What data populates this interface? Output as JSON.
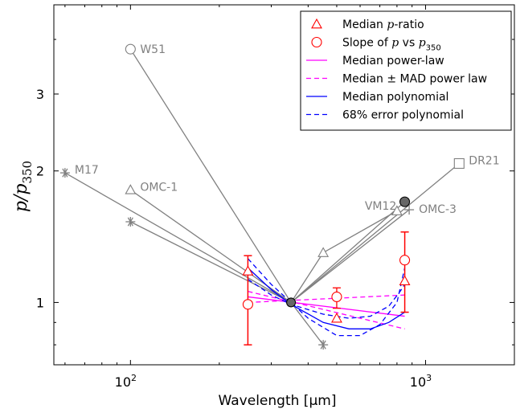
{
  "chart_data": {
    "type": "scatter",
    "xscale": "log",
    "yscale": "log",
    "xlim": [
      55,
      2000
    ],
    "ylim": [
      0.72,
      4.8
    ],
    "xlabel": "Wavelength [",
    "xlabel_unit": "μm]",
    "ylabel_p": "p",
    "ylabel_over": "/p",
    "ylabel_sub": "350",
    "x_ticks": [
      {
        "value": 100,
        "base": "10",
        "exp": "2"
      },
      {
        "value": 1000,
        "base": "10",
        "exp": "3"
      }
    ],
    "y_ticks": [
      {
        "value": 1,
        "label": "1"
      },
      {
        "value": 2,
        "label": "2"
      },
      {
        "value": 3,
        "label": "3"
      }
    ],
    "sources": [
      {
        "name": "W51",
        "marker": "open-circle",
        "points": [
          [
            100,
            3.8
          ],
          [
            350,
            1.0
          ]
        ]
      },
      {
        "name": "M17",
        "marker": "asterisk",
        "points": [
          [
            60,
            1.98
          ],
          [
            350,
            1.0
          ],
          [
            450,
            0.8
          ]
        ]
      },
      {
        "name": "OMC-1",
        "marker": "open-triangle",
        "points": [
          [
            100,
            1.81
          ],
          [
            350,
            1.0
          ]
        ]
      },
      {
        "name": "",
        "marker": "asterisk",
        "points": [
          [
            100,
            1.53
          ],
          [
            350,
            1.0
          ]
        ]
      },
      {
        "name": "DR21",
        "marker": "open-square",
        "points": [
          [
            350,
            1.0
          ],
          [
            1300,
            2.08
          ]
        ]
      },
      {
        "name": "VM12",
        "marker": "filled-circle",
        "points": [
          [
            350,
            1.0
          ],
          [
            850,
            1.7
          ]
        ]
      },
      {
        "name": "OMC-3",
        "marker": "plus",
        "points": [
          [
            350,
            1.0
          ],
          [
            880,
            1.63
          ]
        ]
      },
      {
        "name": "",
        "marker": "open-triangle",
        "points": [
          [
            350,
            1.0
          ],
          [
            450,
            1.3
          ],
          [
            800,
            1.62
          ]
        ]
      }
    ],
    "median_p_ratio": [
      {
        "x": 250,
        "y": 1.18,
        "lo": 0.8,
        "hi": 1.28
      },
      {
        "x": 350,
        "y": 1.0
      },
      {
        "x": 500,
        "y": 0.92
      },
      {
        "x": 850,
        "y": 1.12,
        "lo": 0.95,
        "hi": 1.45
      }
    ],
    "slope_p_vs_p350": [
      {
        "x": 250,
        "y": 0.99,
        "lo": 0.8,
        "hi": 1.28
      },
      {
        "x": 350,
        "y": 1.0
      },
      {
        "x": 500,
        "y": 1.03,
        "lo": 0.97,
        "hi": 1.08
      },
      {
        "x": 850,
        "y": 1.25,
        "lo": 0.95,
        "hi": 1.45
      }
    ],
    "median_power_law": {
      "x": [
        250,
        850
      ],
      "y": [
        1.03,
        0.93
      ]
    },
    "mad_power_law": [
      {
        "x": [
          250,
          850
        ],
        "y": [
          1.06,
          0.87
        ]
      },
      {
        "x": [
          250,
          850
        ],
        "y": [
          1.0,
          1.04
        ]
      }
    ],
    "median_polynomial": {
      "x": [
        250,
        300,
        350,
        450,
        550,
        650,
        750,
        850
      ],
      "y": [
        1.2,
        1.07,
        0.99,
        0.9,
        0.87,
        0.87,
        0.9,
        0.95
      ]
    },
    "error_polynomial": [
      {
        "x": [
          250,
          300,
          350,
          400,
          500,
          600,
          700,
          800,
          850
        ],
        "y": [
          1.26,
          1.1,
          1.0,
          0.92,
          0.84,
          0.84,
          0.89,
          1.0,
          1.2
        ]
      },
      {
        "x": [
          250,
          300,
          350,
          450,
          550,
          650,
          750,
          820,
          850
        ],
        "y": [
          1.13,
          1.04,
          0.99,
          0.94,
          0.92,
          0.93,
          0.98,
          1.06,
          1.1
        ]
      }
    ],
    "legend": {
      "placement": "top-right",
      "entries": [
        {
          "pre": "Median ",
          "math": "p",
          "post": "-ratio",
          "sub": ""
        },
        {
          "pre": "Slope of ",
          "math": "p",
          "post": " vs ",
          "math2": "p",
          "sub": "350"
        },
        {
          "pre": "Median power-law"
        },
        {
          "pre": "Median ± MAD power law"
        },
        {
          "pre": "Median polynomial"
        },
        {
          "pre": "68% error polynomial"
        }
      ]
    },
    "colors": {
      "source": "#808080",
      "red": "#ff0000",
      "magenta": "#ff00ff",
      "blue": "#0000ff",
      "filled_marker": "#666666"
    }
  }
}
